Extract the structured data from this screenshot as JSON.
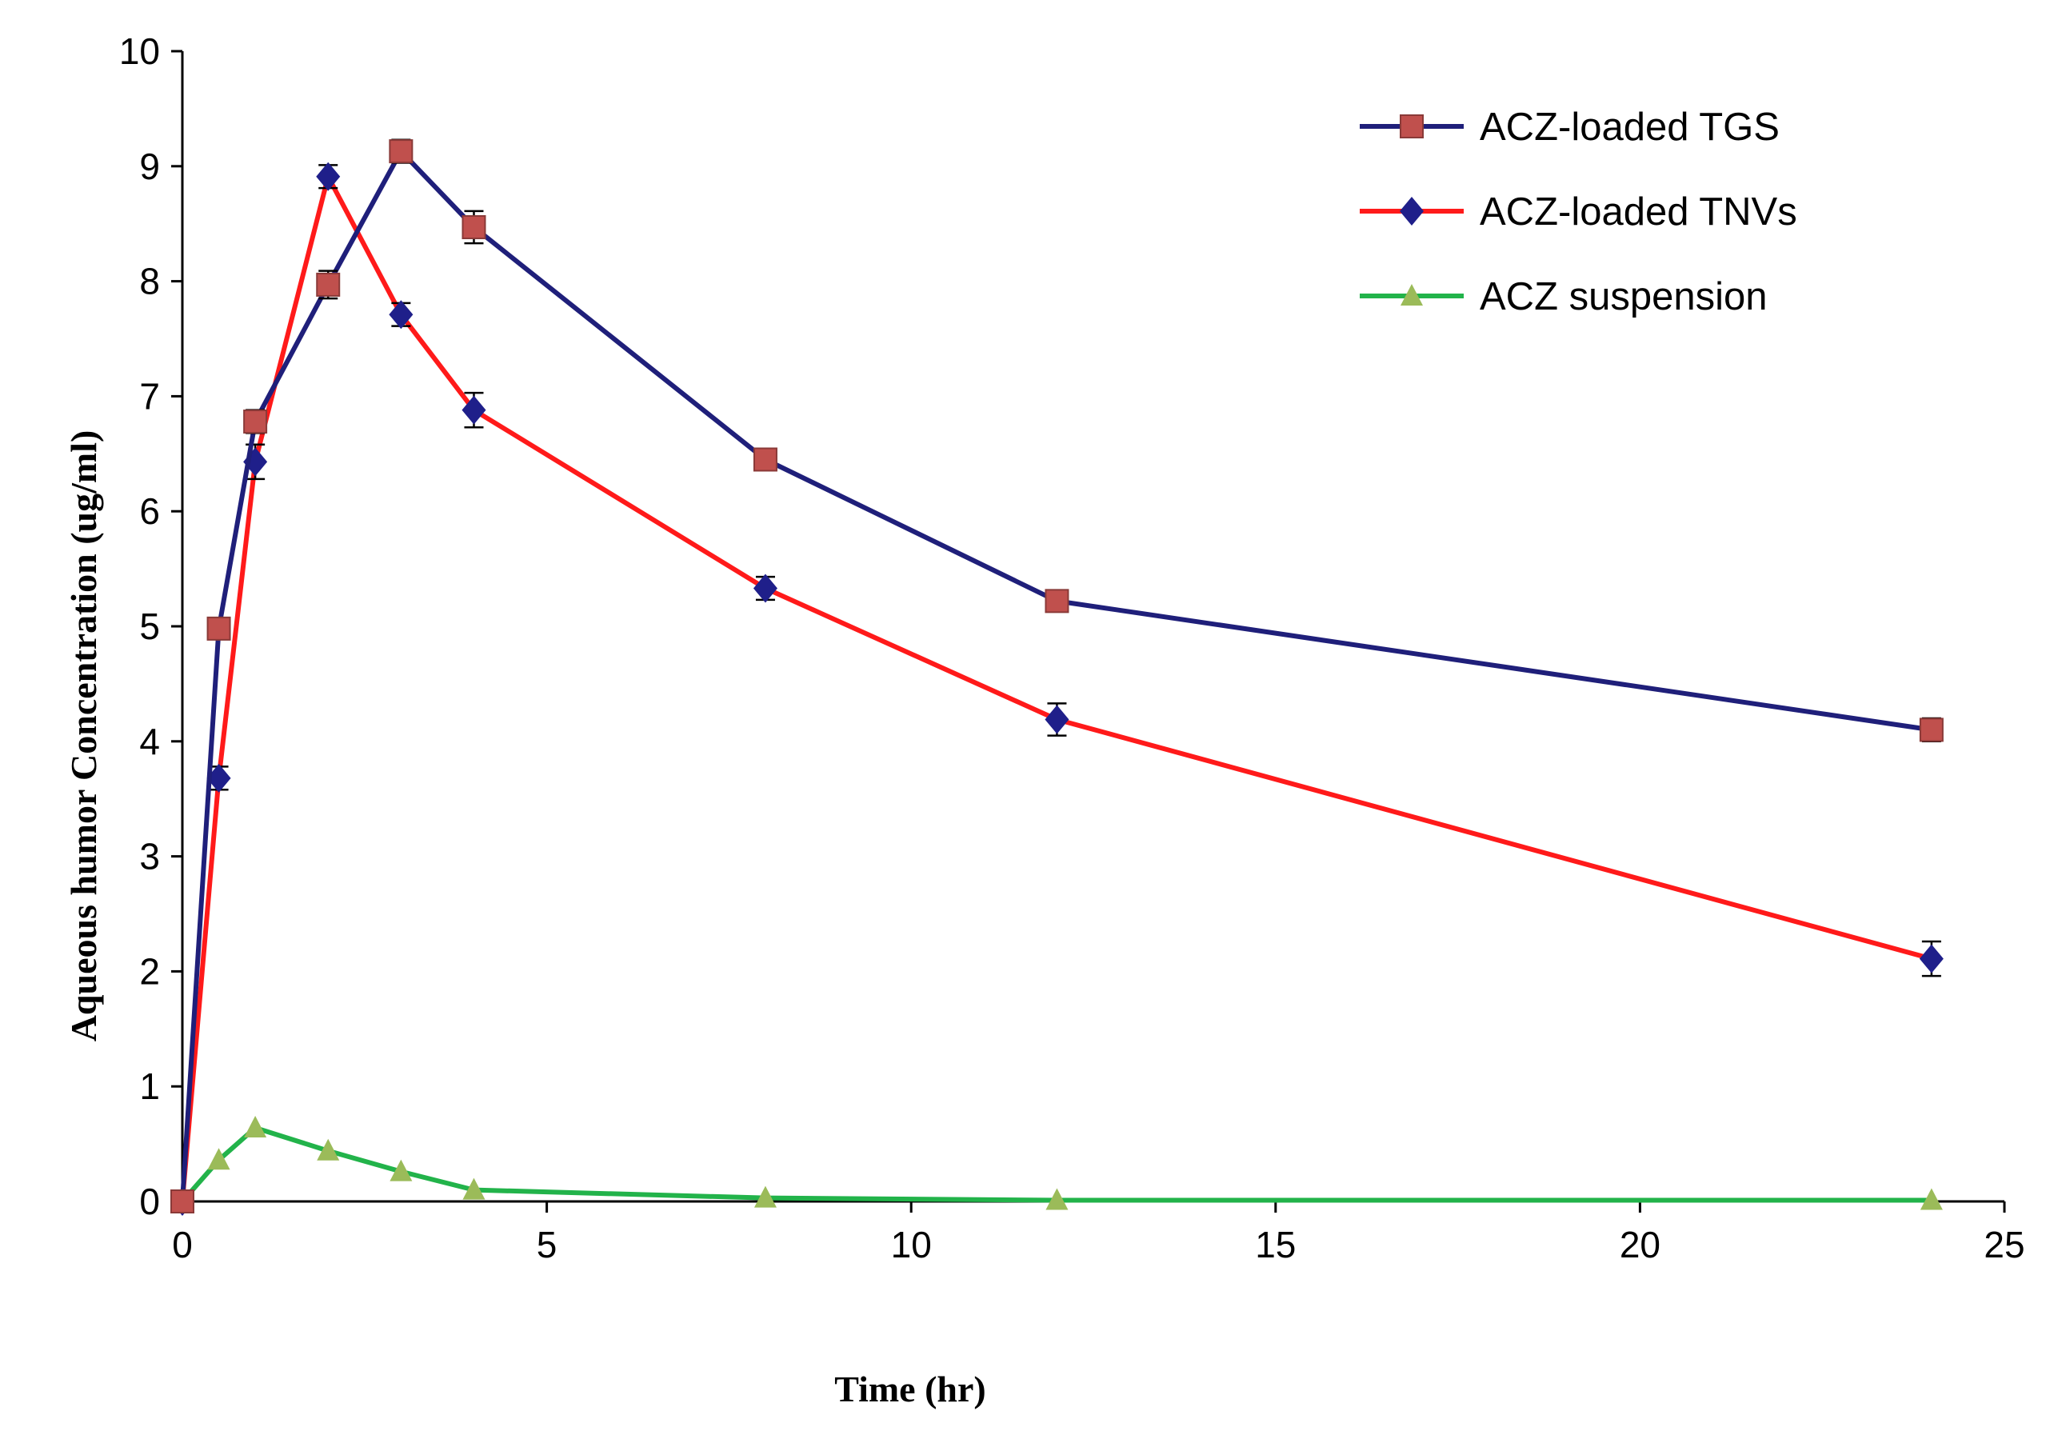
{
  "chart_data": {
    "type": "line",
    "title": "",
    "xlabel": "Time (hr)",
    "ylabel": "Aqueous humor Concentration (ug/ml)",
    "xlim": [
      0,
      25
    ],
    "ylim": [
      0,
      10
    ],
    "xticks": [
      0,
      5,
      10,
      15,
      20,
      25
    ],
    "yticks": [
      0,
      1,
      2,
      3,
      4,
      5,
      6,
      7,
      8,
      9,
      10
    ],
    "grid": false,
    "legend_position": "top-right",
    "series": [
      {
        "name": "ACZ-loaded TGS",
        "color": "#1F1F7A",
        "marker": "square",
        "marker_color": "#C0504D",
        "x": [
          0,
          0.5,
          1,
          2,
          3,
          4,
          8,
          12,
          24
        ],
        "y": [
          0,
          4.98,
          6.78,
          7.97,
          9.13,
          8.47,
          6.45,
          5.22,
          4.1
        ],
        "error": [
          0,
          0.08,
          0.1,
          0.12,
          0.1,
          0.14,
          0.08,
          0.08,
          0.1
        ]
      },
      {
        "name": "ACZ-loaded TNVs",
        "color": "#FF1A1A",
        "marker": "diamond",
        "marker_color": "#1F1F8A",
        "x": [
          0,
          0.5,
          1,
          2,
          3,
          4,
          8,
          12,
          24
        ],
        "y": [
          0,
          3.68,
          6.43,
          8.91,
          7.71,
          6.88,
          5.33,
          4.19,
          2.11
        ],
        "error": [
          0,
          0.1,
          0.15,
          0.1,
          0.1,
          0.15,
          0.1,
          0.14,
          0.15
        ]
      },
      {
        "name": "ACZ suspension",
        "color": "#22B34A",
        "marker": "triangle",
        "marker_color": "#9BBB59",
        "x": [
          0,
          0.5,
          1,
          2,
          3,
          4,
          8,
          12,
          24
        ],
        "y": [
          0,
          0.36,
          0.64,
          0.44,
          0.26,
          0.1,
          0.03,
          0.01,
          0.01
        ],
        "error": [
          0,
          0,
          0,
          0,
          0,
          0,
          0,
          0,
          0
        ]
      }
    ]
  }
}
